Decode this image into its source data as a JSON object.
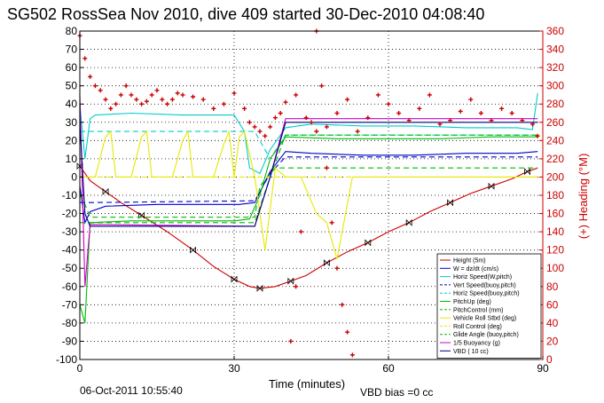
{
  "chart_data": {
    "type": "line",
    "title": "SG502 RossSea Nov 2010, dive 409 started 30-Dec-2010 04:08:40",
    "xlabel": "Time (minutes)",
    "ylabel": "",
    "ylabel_right": "(+) Heading (°M)",
    "xlim": [
      0,
      90
    ],
    "ylim": [
      -100,
      80
    ],
    "ylim_right": [
      0,
      360
    ],
    "xticks": [
      "0",
      "30",
      "60",
      "90"
    ],
    "yticks": [
      "80",
      "70",
      "60",
      "50",
      "40",
      "30",
      "20",
      "10",
      "0",
      "-10",
      "-20",
      "-30",
      "-40",
      "-50",
      "-60",
      "-70",
      "-80",
      "-90",
      "-100"
    ],
    "yticks_right": [
      "360",
      "340",
      "320",
      "300",
      "280",
      "260",
      "240",
      "220",
      "200",
      "180",
      "160",
      "140",
      "120",
      "100",
      "80",
      "60",
      "40",
      "20",
      "0"
    ],
    "grid": true,
    "footer_date": "06-Oct-2011 10:55:40",
    "footer_note": "VBD bias =0 cc",
    "colors": {
      "height": "#cc0000",
      "w": "#0000cc",
      "horiz": "#00cccc",
      "pitch": "#00bb00",
      "roll": "#e8e800",
      "buoy": "#cc00cc",
      "vbd": "#000080",
      "axis": "#000000"
    },
    "legend": [
      {
        "label": "Height (5m)",
        "color": "#cc0000",
        "style": "solid"
      },
      {
        "label": "W = dz/dt (cm/s)",
        "color": "#0000cc",
        "style": "solid"
      },
      {
        "label": "Horiz Speed(W,pitch)",
        "color": "#00cccc",
        "style": "solid"
      },
      {
        "label": "Vert Speed(buoy,pitch)",
        "color": "#0000cc",
        "style": "dashed"
      },
      {
        "label": "Horiz Speed(buoy,pitch)",
        "color": "#00cccc",
        "style": "dashed"
      },
      {
        "label": "PitchUp (deg)",
        "color": "#00bb00",
        "style": "solid"
      },
      {
        "label": "PitchControl (mm)",
        "color": "#00bb00",
        "style": "dashed"
      },
      {
        "label": "Vehicle Roll Stbd (deg)",
        "color": "#e8e800",
        "style": "solid"
      },
      {
        "label": "Roll Control (deg)",
        "color": "#e8e800",
        "style": "dashed"
      },
      {
        "label": "Glide Angle (buoy,pitch)",
        "color": "#00bb00",
        "style": "dashed"
      },
      {
        "label": "1/5 Buoyancy (g)",
        "color": "#cc00cc",
        "style": "solid"
      },
      {
        "label": "VBD ( 10 cc)",
        "color": "#000080",
        "style": "solid"
      }
    ],
    "series": [
      {
        "name": "Height (5m)",
        "color": "#cc0000",
        "style": "solid",
        "marker": "bowtie",
        "x": [
          0,
          2,
          5,
          8,
          12,
          17,
          22,
          26,
          30,
          33,
          35,
          38,
          41,
          44,
          48,
          52,
          56,
          60,
          64,
          68,
          72,
          76,
          80,
          84,
          87,
          89
        ],
        "y": [
          6,
          -2,
          -8,
          -14,
          -21,
          -30,
          -40,
          -49,
          -56,
          -60,
          -61,
          -60,
          -57,
          -54,
          -47,
          -41,
          -36,
          -30,
          -25,
          -19,
          -14,
          -9,
          -5,
          -1,
          3,
          5
        ]
      },
      {
        "name": "W = dz/dt (cm/s)",
        "color": "#0000cc",
        "style": "solid",
        "x": [
          0,
          1,
          2,
          5,
          15,
          25,
          31,
          34,
          37,
          40,
          45,
          55,
          65,
          75,
          85,
          89
        ],
        "y": [
          -5,
          -25,
          -19,
          -16,
          -15,
          -15,
          -15,
          -14,
          3,
          14,
          13,
          12,
          12,
          13,
          13,
          14
        ]
      },
      {
        "name": "Horiz Speed(W,pitch)",
        "color": "#00cccc",
        "style": "solid",
        "x": [
          0,
          1,
          2,
          3,
          10,
          20,
          30,
          32,
          33,
          35,
          37,
          40,
          45,
          55,
          65,
          75,
          85,
          88,
          89
        ],
        "y": [
          40,
          10,
          32,
          34,
          35,
          34,
          34,
          25,
          5,
          2,
          15,
          27,
          29,
          28,
          28,
          27,
          27,
          26,
          46
        ]
      },
      {
        "name": "Vert Speed(buoy,pitch)",
        "color": "#0000cc",
        "style": "dashed",
        "x": [
          0,
          2,
          34,
          37,
          40,
          89
        ],
        "y": [
          -14,
          -14,
          -13,
          2,
          11,
          11
        ]
      },
      {
        "name": "Horiz Speed(buoy,pitch)",
        "color": "#00cccc",
        "style": "dashed",
        "x": [
          0,
          2,
          34,
          37,
          40,
          89
        ],
        "y": [
          25,
          25,
          25,
          10,
          23,
          23
        ]
      },
      {
        "name": "PitchUp (deg)",
        "color": "#00bb00",
        "style": "solid",
        "x": [
          0,
          1,
          2,
          10,
          20,
          30,
          33,
          35,
          37,
          40,
          50,
          60,
          70,
          80,
          89
        ],
        "y": [
          -70,
          -80,
          -25,
          -24,
          -24,
          -24,
          -23,
          -10,
          10,
          22,
          21,
          21,
          21,
          22,
          22
        ]
      },
      {
        "name": "PitchControl (mm)",
        "color": "#00bb00",
        "style": "dashed",
        "x": [
          0,
          1,
          2,
          34,
          35,
          38,
          89
        ],
        "y": [
          -10,
          -15,
          -22,
          -22,
          -5,
          5,
          5
        ]
      },
      {
        "name": "Vehicle Roll Stbd (deg)",
        "color": "#e8e800",
        "style": "solid",
        "x": [
          0,
          3,
          5,
          6,
          7,
          10,
          12,
          13,
          14,
          18,
          20,
          21,
          22,
          26,
          28,
          29,
          30,
          31,
          32,
          34,
          36,
          38,
          40,
          43,
          46,
          48,
          50,
          53,
          56,
          60,
          65,
          70,
          75,
          80,
          85,
          89
        ],
        "y": [
          0,
          0,
          22,
          25,
          0,
          0,
          22,
          25,
          0,
          0,
          20,
          25,
          0,
          0,
          18,
          25,
          0,
          22,
          25,
          0,
          -40,
          5,
          0,
          0,
          -20,
          -25,
          -45,
          0,
          0,
          0,
          0,
          0,
          0,
          0,
          0,
          0
        ]
      },
      {
        "name": "Roll Control (deg)",
        "color": "#e8e800",
        "style": "dashed",
        "x": [
          0,
          89
        ],
        "y": [
          0,
          0
        ]
      },
      {
        "name": "Glide Angle (buoy,pitch)",
        "color": "#00bb00",
        "style": "dashed",
        "x": [
          0,
          2,
          34,
          37,
          40,
          89
        ],
        "y": [
          -25,
          -25,
          -25,
          0,
          23,
          23
        ]
      },
      {
        "name": "1/5 Buoyancy (g)",
        "color": "#cc00cc",
        "style": "solid",
        "x": [
          0,
          1,
          2,
          34,
          37,
          40,
          89
        ],
        "y": [
          45,
          -60,
          -26,
          -27,
          0,
          32,
          32
        ]
      },
      {
        "name": "VBD ( 10 cc)",
        "color": "#000080",
        "style": "solid",
        "x": [
          0,
          1,
          2,
          34,
          37,
          40,
          89
        ],
        "y": [
          30,
          -20,
          -27,
          -27,
          0,
          30,
          30
        ]
      },
      {
        "name": "Heading",
        "color": "#cc0000",
        "style": "marker",
        "axis": "right",
        "x": [
          0,
          1,
          2,
          3,
          4,
          5,
          6,
          7,
          8,
          9,
          10,
          11,
          12,
          13,
          14,
          15,
          16,
          17,
          18,
          19,
          20,
          22,
          24,
          26,
          28,
          30,
          32,
          33,
          34,
          35,
          36,
          37,
          38,
          39,
          40,
          42,
          44,
          46,
          48,
          50,
          52,
          54,
          56,
          58,
          60,
          62,
          64,
          66,
          68,
          70,
          72,
          74,
          76,
          78,
          80,
          82,
          84,
          86,
          88,
          89
        ],
        "y": [
          355,
          330,
          310,
          300,
          295,
          285,
          275,
          280,
          290,
          300,
          290,
          285,
          280,
          283,
          290,
          295,
          285,
          280,
          285,
          292,
          290,
          288,
          285,
          275,
          280,
          292,
          275,
          260,
          255,
          250,
          245,
          255,
          265,
          270,
          282,
          290,
          265,
          250,
          255,
          270,
          285,
          250,
          265,
          290,
          280,
          270,
          262,
          275,
          290,
          258,
          262,
          272,
          285,
          270,
          262,
          275,
          270,
          262,
          258,
          245
        ]
      },
      {
        "name": "Heading (spikes)",
        "color": "#cc0000",
        "style": "marker",
        "axis": "right",
        "x": [
          41,
          42,
          43,
          45,
          46,
          47,
          48,
          49,
          50,
          51,
          52,
          53
        ],
        "y": [
          20,
          80,
          140,
          260,
          360,
          300,
          210,
          150,
          100,
          60,
          30,
          5
        ]
      }
    ]
  }
}
